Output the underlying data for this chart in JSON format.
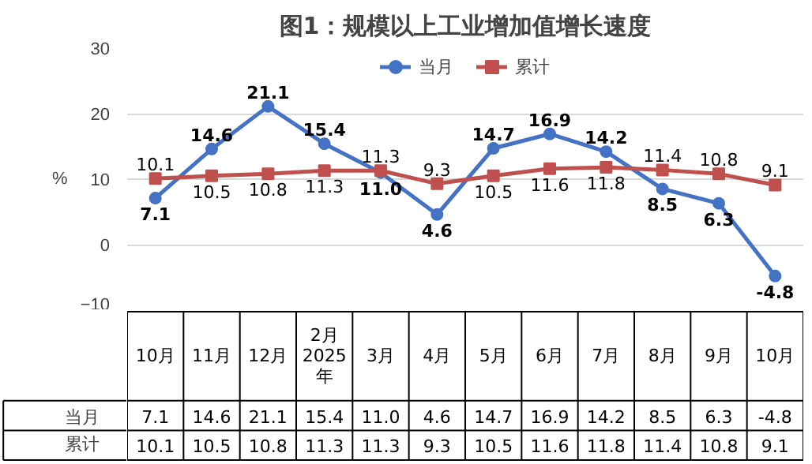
{
  "chart_data": {
    "type": "line",
    "title": "图1：规模以上工业增加值增长速度",
    "ylabel": "%",
    "categories": [
      "10月",
      "11月",
      "12月",
      "2月\n2025\n年",
      "3月",
      "4月",
      "5月",
      "6月",
      "7月",
      "8月",
      "9月",
      "10月"
    ],
    "series": [
      {
        "name": "当月",
        "color": "#4472c4",
        "values": [
          7.1,
          14.6,
          21.1,
          15.4,
          11.0,
          4.6,
          14.7,
          16.9,
          14.2,
          8.5,
          6.3,
          -4.8
        ],
        "value_labels": [
          "7.1",
          "14.6",
          "21.1",
          "15.4",
          "11.0",
          "4.6",
          "14.7",
          "16.9",
          "14.2",
          "8.5",
          "6.3",
          "-4.8"
        ],
        "marker": "circle"
      },
      {
        "name": "累计",
        "color": "#c0504d",
        "values": [
          10.1,
          10.5,
          10.8,
          11.3,
          11.3,
          9.3,
          10.5,
          11.6,
          11.8,
          11.4,
          10.8,
          9.1
        ],
        "value_labels": [
          "10.1",
          "10.5",
          "10.8",
          "11.3",
          "11.3",
          "9.3",
          "10.5",
          "11.6",
          "11.8",
          "11.4",
          "10.8",
          "9.1"
        ],
        "marker": "square"
      }
    ],
    "ylim": [
      -10,
      30
    ],
    "yticks": [
      -10,
      0,
      10,
      20,
      30
    ],
    "grid": "y",
    "legend": "top"
  }
}
